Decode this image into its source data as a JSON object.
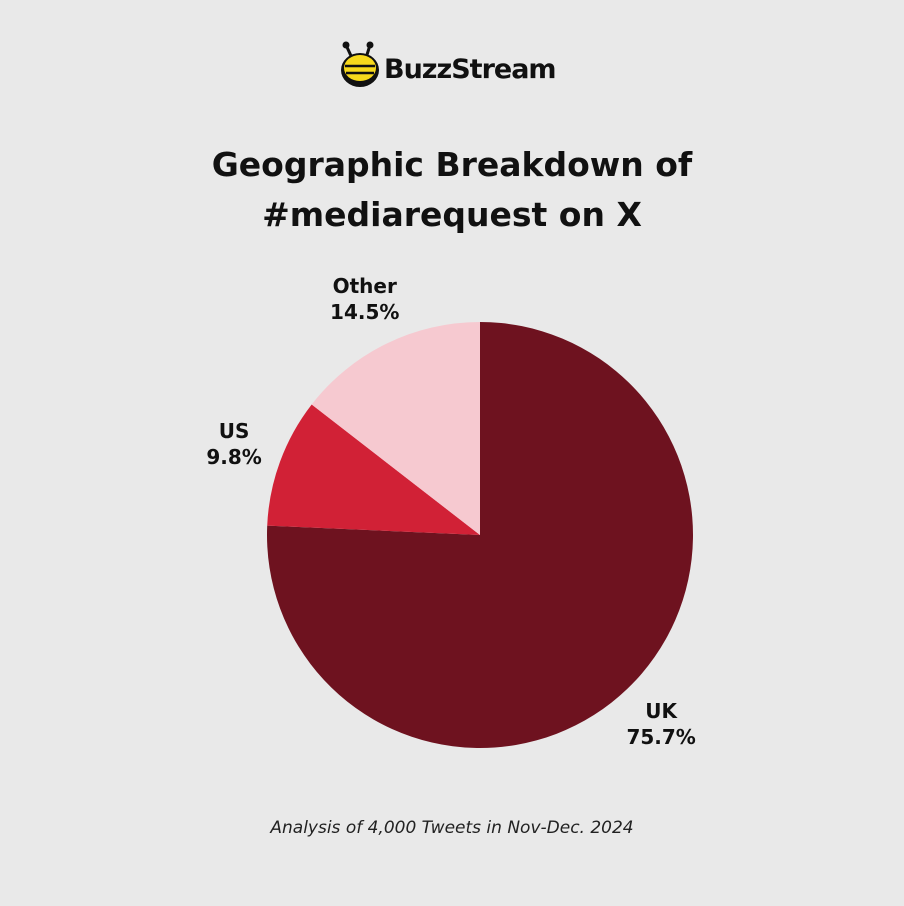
{
  "brand": "BuzzStream",
  "chart_data": {
    "type": "pie",
    "title": "Geographic Breakdown of #mediarequest on X",
    "categories": [
      "UK",
      "US",
      "Other"
    ],
    "values": [
      75.7,
      9.8,
      14.5
    ],
    "value_labels": [
      "75.7%",
      "9.8%",
      "14.5%"
    ],
    "colors": [
      "#6e121f",
      "#d12136",
      "#f6c9d0"
    ],
    "note": "Analysis of 4,000 Tweets in Nov-Dec. 2024"
  }
}
